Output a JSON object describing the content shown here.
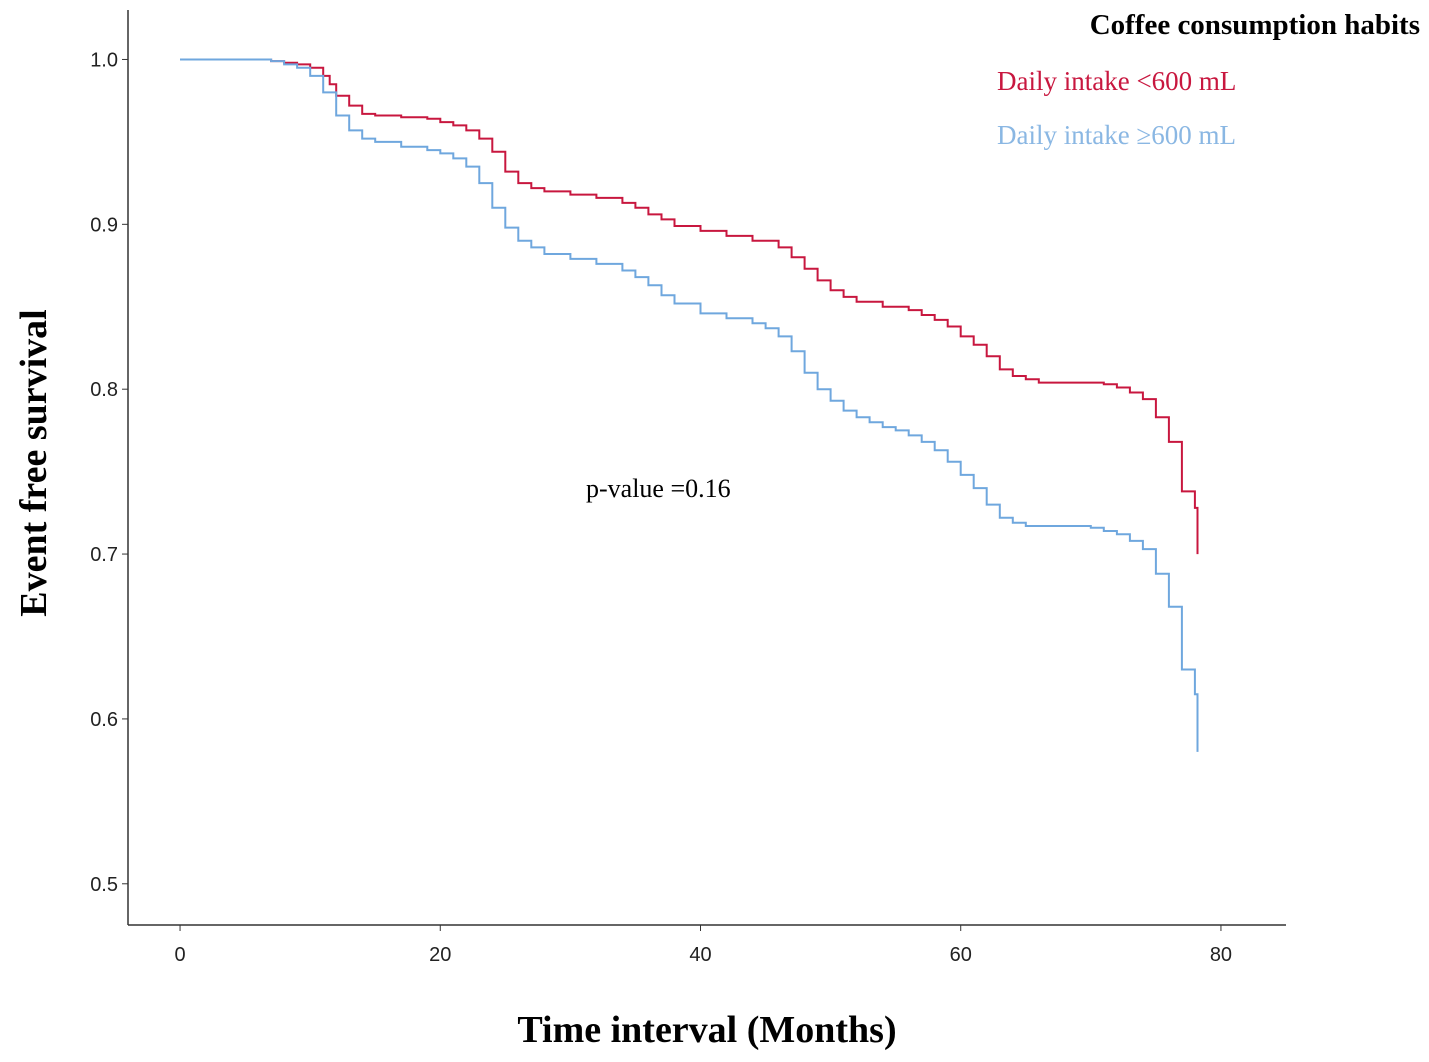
{
  "chart_data": {
    "type": "line",
    "title": "",
    "xlabel": "Time interval (Months)",
    "ylabel": "Event free survival",
    "xlim": [
      -4,
      85
    ],
    "ylim": [
      0.475,
      1.03
    ],
    "x_ticks": [
      0,
      20,
      40,
      60,
      80
    ],
    "x_tick_labels": [
      "0",
      "20",
      "40",
      "60",
      "80"
    ],
    "y_ticks": [
      0.5,
      0.6,
      0.7,
      0.8,
      0.9,
      1.0
    ],
    "y_tick_labels": [
      "0.5",
      "0.6",
      "0.7",
      "0.8",
      "0.9",
      "1.0"
    ],
    "grid": false,
    "legend": {
      "title": "Coffee consumption habits",
      "position": "top-right"
    },
    "annotation": "p-value =0.16",
    "series": [
      {
        "name": "Daily intake <600 mL",
        "color": "#c8173f",
        "step": true,
        "x": [
          0,
          7,
          8,
          9,
          10,
          11,
          11.5,
          12,
          13,
          14,
          15,
          17,
          19,
          20,
          21,
          22,
          23,
          24,
          25,
          26,
          27,
          28,
          30,
          32,
          34,
          35,
          36,
          37,
          38,
          40,
          42,
          44,
          46,
          47,
          48,
          49,
          50,
          51,
          52,
          54,
          56,
          57,
          58,
          59,
          60,
          61,
          62,
          63,
          64,
          65,
          66,
          68,
          70,
          71,
          72,
          73,
          74,
          75,
          76,
          77,
          78
        ],
        "y": [
          1.0,
          0.999,
          0.998,
          0.997,
          0.995,
          0.99,
          0.985,
          0.978,
          0.972,
          0.967,
          0.966,
          0.965,
          0.964,
          0.962,
          0.96,
          0.957,
          0.952,
          0.944,
          0.932,
          0.925,
          0.922,
          0.92,
          0.918,
          0.916,
          0.913,
          0.91,
          0.906,
          0.903,
          0.899,
          0.896,
          0.893,
          0.89,
          0.886,
          0.88,
          0.873,
          0.866,
          0.86,
          0.856,
          0.853,
          0.85,
          0.848,
          0.845,
          0.842,
          0.838,
          0.832,
          0.827,
          0.82,
          0.812,
          0.808,
          0.806,
          0.804,
          0.804,
          0.804,
          0.803,
          0.801,
          0.798,
          0.794,
          0.783,
          0.768,
          0.738,
          0.728
        ],
        "x_end": 78.2,
        "y_end": 0.7
      },
      {
        "name": "Daily intake ≥600 mL",
        "color": "#6fa7de",
        "step": true,
        "x": [
          0,
          7,
          8,
          9,
          10,
          11,
          12,
          13,
          14,
          15,
          17,
          19,
          20,
          21,
          22,
          23,
          24,
          25,
          26,
          27,
          28,
          30,
          32,
          34,
          35,
          36,
          37,
          38,
          40,
          42,
          44,
          45,
          46,
          47,
          48,
          49,
          50,
          51,
          52,
          53,
          54,
          55,
          56,
          57,
          58,
          59,
          60,
          61,
          62,
          63,
          64,
          65,
          66,
          68,
          70,
          71,
          72,
          73,
          74,
          75,
          76,
          77,
          78
        ],
        "y": [
          1.0,
          0.999,
          0.997,
          0.995,
          0.99,
          0.98,
          0.966,
          0.957,
          0.952,
          0.95,
          0.947,
          0.945,
          0.943,
          0.94,
          0.935,
          0.925,
          0.91,
          0.898,
          0.89,
          0.886,
          0.882,
          0.879,
          0.876,
          0.872,
          0.868,
          0.863,
          0.857,
          0.852,
          0.846,
          0.843,
          0.84,
          0.837,
          0.832,
          0.823,
          0.81,
          0.8,
          0.793,
          0.787,
          0.783,
          0.78,
          0.777,
          0.775,
          0.772,
          0.768,
          0.763,
          0.756,
          0.748,
          0.74,
          0.73,
          0.722,
          0.719,
          0.717,
          0.717,
          0.717,
          0.716,
          0.714,
          0.712,
          0.708,
          0.703,
          0.688,
          0.668,
          0.63,
          0.615
        ],
        "x_end": 78.2,
        "y_end": 0.58
      }
    ]
  }
}
